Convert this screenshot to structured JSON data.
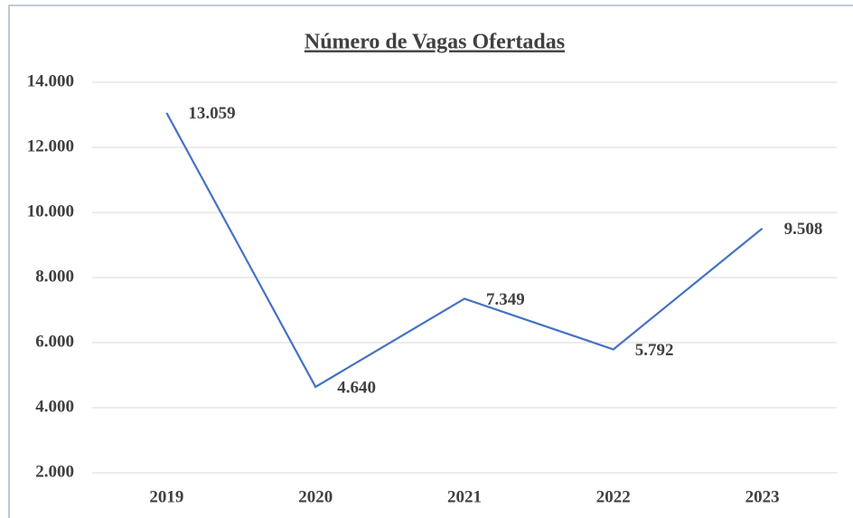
{
  "chart_data": {
    "type": "line",
    "title": "Número de Vagas Ofertadas",
    "categories": [
      "2019",
      "2020",
      "2021",
      "2022",
      "2023"
    ],
    "series": [
      {
        "name": "Número de Vagas Ofertadas",
        "color": "#4472c4",
        "values": [
          13059,
          4640,
          7349,
          5792,
          9508
        ],
        "value_labels": [
          "13.059",
          "4.640",
          "7.349",
          "5.792",
          "9.508"
        ]
      }
    ],
    "ylim": [
      2000,
      14000
    ],
    "yticks": [
      {
        "value": 2000,
        "label": "2.000"
      },
      {
        "value": 4000,
        "label": "4.000"
      },
      {
        "value": 6000,
        "label": "6.000"
      },
      {
        "value": 8000,
        "label": "8.000"
      },
      {
        "value": 10000,
        "label": "10.000"
      },
      {
        "value": 12000,
        "label": "12.000"
      },
      {
        "value": 14000,
        "label": "14.000"
      }
    ],
    "grid": true
  }
}
